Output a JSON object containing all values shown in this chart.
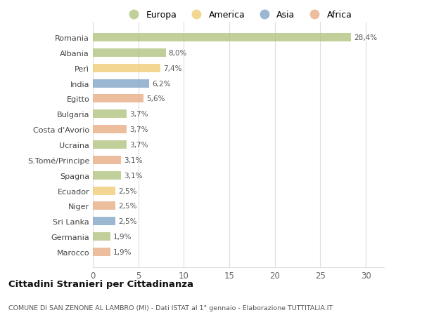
{
  "countries": [
    "Romania",
    "Albania",
    "Perì",
    "India",
    "Egitto",
    "Bulgaria",
    "Costa d'Avorio",
    "Ucraina",
    "S.Tomé/Principe",
    "Spagna",
    "Ecuador",
    "Niger",
    "Sri Lanka",
    "Germania",
    "Marocco"
  ],
  "values": [
    28.4,
    8.0,
    7.4,
    6.2,
    5.6,
    3.7,
    3.7,
    3.7,
    3.1,
    3.1,
    2.5,
    2.5,
    2.5,
    1.9,
    1.9
  ],
  "labels": [
    "28,4%",
    "8,0%",
    "7,4%",
    "6,2%",
    "5,6%",
    "3,7%",
    "3,7%",
    "3,7%",
    "3,1%",
    "3,1%",
    "2,5%",
    "2,5%",
    "2,5%",
    "1,9%",
    "1,9%"
  ],
  "colors": [
    "#adc178",
    "#adc178",
    "#f0c96e",
    "#7b9fc4",
    "#e8a97e",
    "#adc178",
    "#e8a97e",
    "#adc178",
    "#e8a97e",
    "#adc178",
    "#f0c96e",
    "#e8a97e",
    "#7b9fc4",
    "#adc178",
    "#e8a97e"
  ],
  "legend_labels": [
    "Europa",
    "America",
    "Asia",
    "Africa"
  ],
  "legend_colors": [
    "#adc178",
    "#f0c96e",
    "#7b9fc4",
    "#e8a97e"
  ],
  "title": "Cittadini Stranieri per Cittadinanza",
  "subtitle": "COMUNE DI SAN ZENONE AL LAMBRO (MI) - Dati ISTAT al 1° gennaio - Elaborazione TUTTITALIA.IT",
  "xlim": [
    0,
    32
  ],
  "xticks": [
    0,
    5,
    10,
    15,
    20,
    25,
    30
  ],
  "bg_color": "#ffffff",
  "grid_color": "#dddddd",
  "bar_alpha": 0.75,
  "bar_height": 0.55
}
